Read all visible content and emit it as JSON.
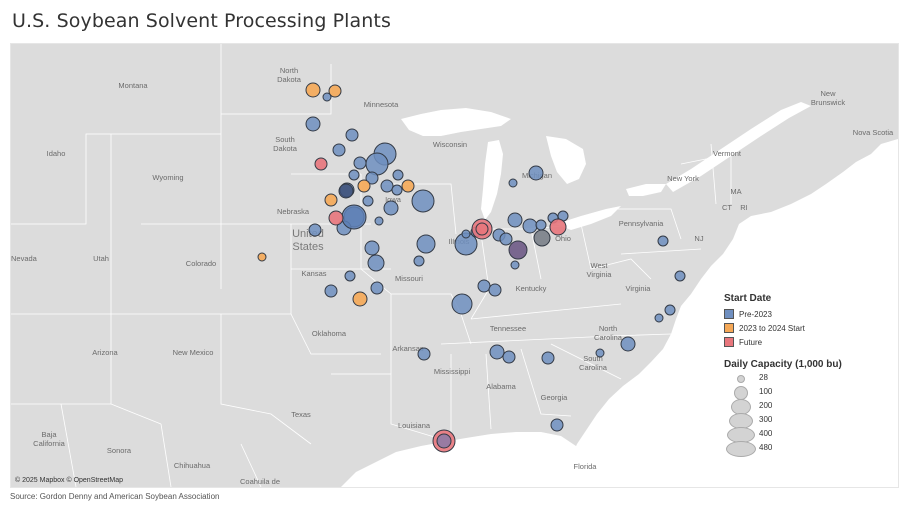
{
  "title": "U.S. Soybean Solvent Processing Plants",
  "source": "Source: Gordon Denny and American Soybean Association",
  "attribution": "© 2025 Mapbox © OpenStreetMap",
  "legend": {
    "color_title": "Start Date",
    "categories": [
      {
        "label": "Pre-2023",
        "color": "#6f8fc0"
      },
      {
        "label": "2023 to 2024 Start",
        "color": "#f5a857"
      },
      {
        "label": "Future",
        "color": "#e8767c"
      }
    ],
    "size_title": "Daily Capacity (1,000 bu)",
    "sizes": [
      "28",
      "100",
      "200",
      "300",
      "400",
      "480"
    ]
  },
  "map_labels": {
    "montana": "Montana",
    "north_dakota_1": "North",
    "north_dakota_2": "Dakota",
    "minnesota": "Minnesota",
    "south_dakota_1": "South",
    "south_dakota_2": "Dakota",
    "idaho": "Idaho",
    "wyoming": "Wyoming",
    "wisconsin": "Wisconsin",
    "michigan": "Michigan",
    "iowa": "Iowa",
    "nebraska": "Nebraska",
    "united_1": "United",
    "united_2": "States",
    "nevada": "Nevada",
    "utah": "Utah",
    "colorado": "Colorado",
    "illinois": "Illinois",
    "ohio": "Ohio",
    "pennsylvania": "Pennsylvania",
    "new_york": "New York",
    "vermont": "Vermont",
    "new_brunswick_1": "New",
    "new_brunswick_2": "Brunswick",
    "nova_scotia": "Nova Scotia",
    "ma": "MA",
    "ct": "CT",
    "ri": "RI",
    "nj": "NJ",
    "kansas": "Kansas",
    "missouri": "Missouri",
    "kentucky": "Kentucky",
    "west_virginia_1": "West",
    "west_virginia_2": "Virginia",
    "virginia": "Virginia",
    "oklahoma": "Oklahoma",
    "arizona": "Arizona",
    "new_mexico": "New Mexico",
    "arkansas": "Arkansas",
    "tennessee": "Tennessee",
    "north_carolina_1": "North",
    "north_carolina_2": "Carolina",
    "south_carolina_1": "South",
    "south_carolina_2": "Carolina",
    "mississippi": "Mississippi",
    "alabama": "Alabama",
    "georgia": "Georgia",
    "texas": "Texas",
    "louisiana": "Louisiana",
    "baja_1": "Baja",
    "baja_2": "California",
    "sonora": "Sonora",
    "chihuahua": "Chihuahua",
    "coahuila": "Coahuila de",
    "florida": "Florida"
  }
}
